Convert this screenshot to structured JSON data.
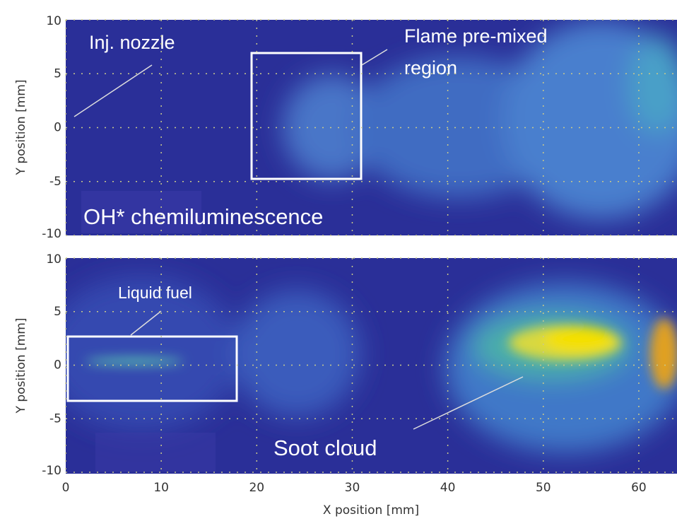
{
  "chart_data": [
    {
      "type": "image",
      "ylabel": "Y position [mm]",
      "ylim": [
        -10,
        10
      ],
      "yticks": [
        -10,
        -5,
        0,
        5,
        10
      ],
      "xlim": [
        0,
        64
      ],
      "grid": true,
      "annotations": [
        "Inj. nozzle",
        "Flame pre-mixed",
        "region",
        "OH* chemiluminescence"
      ]
    },
    {
      "type": "image",
      "ylabel": "Y position [mm]",
      "xlabel": "X position [mm]",
      "ylim": [
        -10,
        10
      ],
      "yticks": [
        -10,
        -5,
        0,
        5,
        10
      ],
      "xlim": [
        0,
        64
      ],
      "xticks": [
        0,
        10,
        20,
        30,
        40,
        50,
        60
      ],
      "grid": true,
      "annotations": [
        "Liquid fuel",
        "Soot cloud"
      ]
    }
  ]
}
